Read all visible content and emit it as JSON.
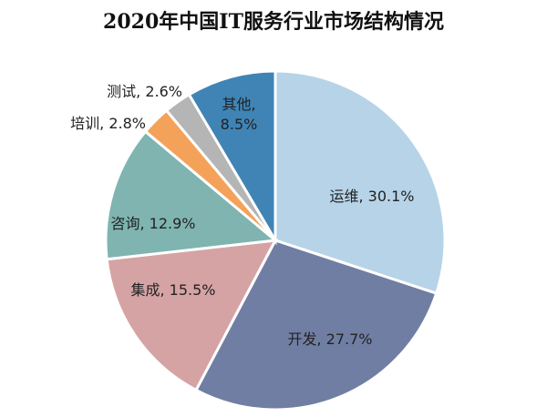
{
  "chart_data": {
    "type": "pie",
    "title": "2020年中国IT服务行业市场结构情况",
    "start": "top",
    "direction": "clockwise",
    "slices": [
      {
        "label": "运维",
        "value": 30.1,
        "text": "运维, 30.1%",
        "color": "#b7d3e8"
      },
      {
        "label": "开发",
        "value": 27.7,
        "text": "开发, 27.7%",
        "color": "#717ea3"
      },
      {
        "label": "集成",
        "value": 15.5,
        "text": "集成, 15.5%",
        "color": "#d5a3a4"
      },
      {
        "label": "咨询",
        "value": 12.9,
        "text": "咨询, 12.9%",
        "color": "#7fb4b0"
      },
      {
        "label": "培训",
        "value": 2.8,
        "text": "培训, 2.8%",
        "color": "#f4a25a"
      },
      {
        "label": "测试",
        "value": 2.6,
        "text": "测试, 2.6%",
        "color": "#b5b5b5"
      },
      {
        "label": "其他",
        "value": 8.5,
        "text_lines": [
          "其他,",
          "8.5%"
        ],
        "color": "#3f84b5"
      }
    ]
  }
}
